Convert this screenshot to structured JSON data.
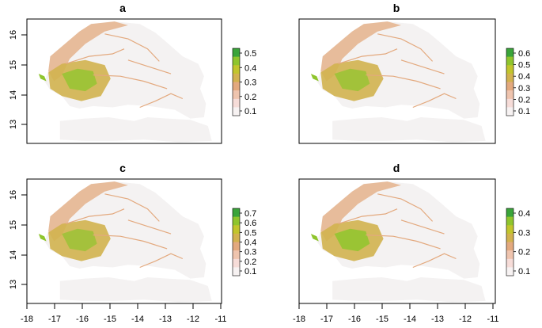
{
  "colors": {
    "background": "#ffffff",
    "frame": "#000000",
    "land_light": "#f4f2f2",
    "ramp": [
      "#f7f2f2",
      "#f6dcd8",
      "#efc4ae",
      "#e3a97e",
      "#d2b24f",
      "#c2c52c",
      "#8fc52d",
      "#3aa43a"
    ]
  },
  "icons": {
    "map_shape": "senegal-outline-shape"
  },
  "panels": [
    {
      "title": "a",
      "legend_ticks": [
        "0.5",
        "0.4",
        "0.3",
        "0.2",
        "0.1"
      ],
      "level": 0.78
    },
    {
      "title": "b",
      "legend_ticks": [
        "0.6",
        "0.5",
        "0.4",
        "0.3",
        "0.2",
        "0.1"
      ],
      "level": 0.72
    },
    {
      "title": "c",
      "legend_ticks": [
        "0.7",
        "0.6",
        "0.5",
        "0.4",
        "0.3",
        "0.2",
        "0.1"
      ],
      "level": 0.7
    },
    {
      "title": "d",
      "legend_ticks": [
        "0.4",
        "0.3",
        "0.2",
        "0.1"
      ],
      "level": 0.85
    }
  ],
  "y_axis_ticks": [
    "16",
    "15",
    "14",
    "13"
  ],
  "x_axis_ticks": [
    "-18",
    "-17",
    "-16",
    "-15",
    "-14",
    "-13",
    "-12",
    "-11"
  ]
}
